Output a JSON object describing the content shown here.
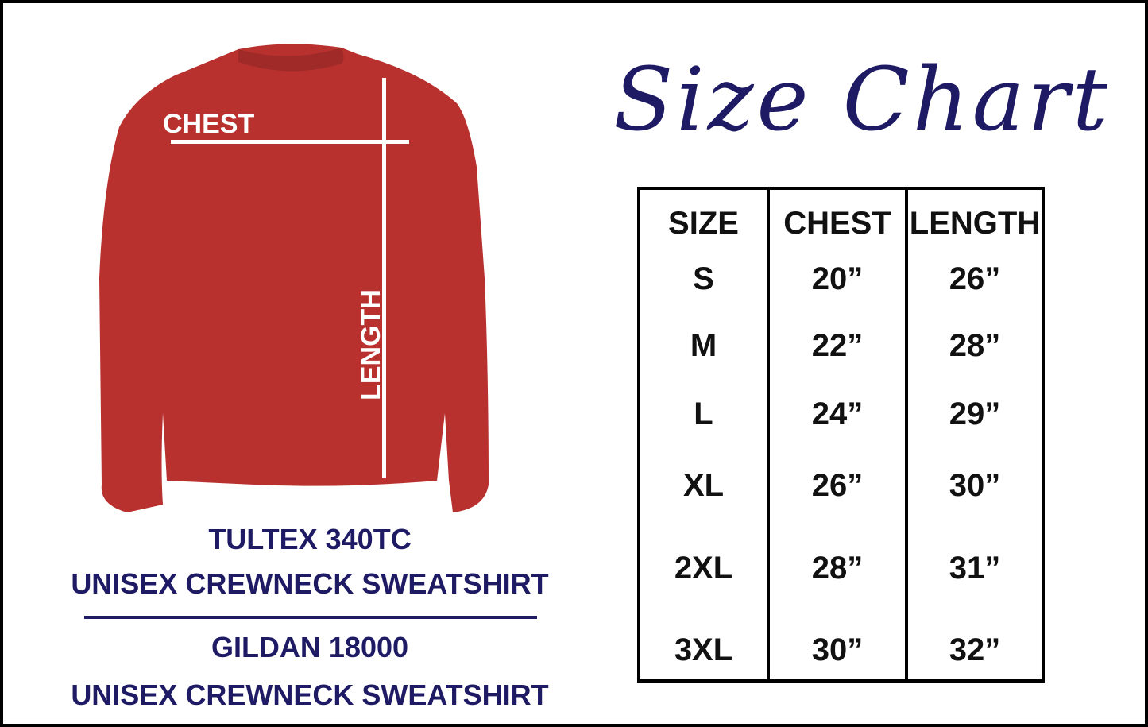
{
  "title": "Size Chart",
  "sweatshirt": {
    "chest_label": "CHEST",
    "length_label": "LENGTH",
    "color": "#b8312f"
  },
  "products": [
    {
      "brand": "TULTEX 340TC",
      "name": "UNISEX CREWNECK SWEATSHIRT"
    },
    {
      "brand": "GILDAN 18000",
      "name": "UNISEX CREWNECK SWEATSHIRT"
    }
  ],
  "table": {
    "headers": [
      "SIZE",
      "CHEST",
      "LENGTH"
    ],
    "rows": [
      [
        "S",
        "20”",
        "26”"
      ],
      [
        "M",
        "22”",
        "28”"
      ],
      [
        "L",
        "24”",
        "29”"
      ],
      [
        "XL",
        "26”",
        "30”"
      ],
      [
        "2XL",
        "28”",
        "31”"
      ],
      [
        "3XL",
        "30”",
        "32”"
      ]
    ]
  },
  "colors": {
    "navy": "#1e1a64",
    "shirt": "#b8312f"
  }
}
